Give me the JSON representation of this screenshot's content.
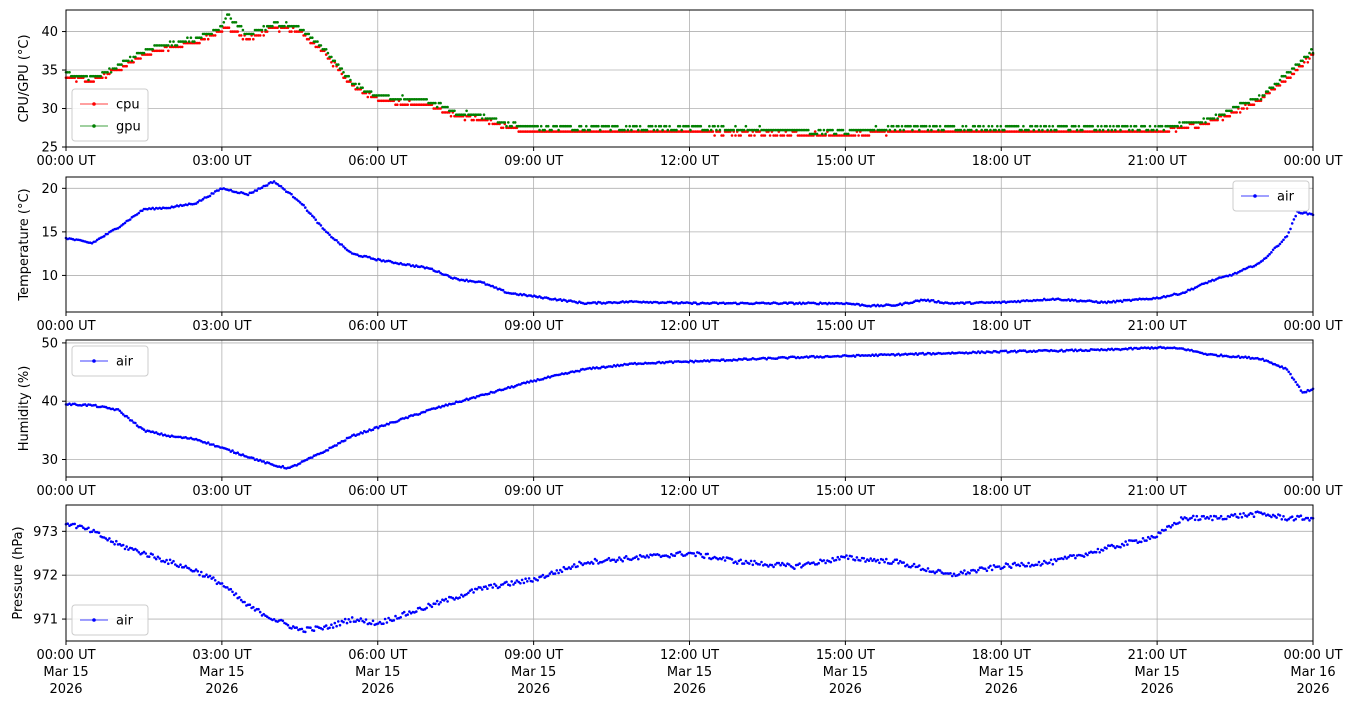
{
  "x_ticks": [
    "00:00 UT",
    "03:00 UT",
    "06:00 UT",
    "09:00 UT",
    "12:00 UT",
    "15:00 UT",
    "18:00 UT",
    "21:00 UT",
    "00:00 UT"
  ],
  "x_ticks_bottom": [
    [
      "00:00 UT",
      "Mar 15",
      "2026"
    ],
    [
      "03:00 UT",
      "Mar 15",
      "2026"
    ],
    [
      "06:00 UT",
      "Mar 15",
      "2026"
    ],
    [
      "09:00 UT",
      "Mar 15",
      "2026"
    ],
    [
      "12:00 UT",
      "Mar 15",
      "2026"
    ],
    [
      "15:00 UT",
      "Mar 15",
      "2026"
    ],
    [
      "18:00 UT",
      "Mar 15",
      "2026"
    ],
    [
      "21:00 UT",
      "Mar 15",
      "2026"
    ],
    [
      "00:00 UT",
      "Mar 16",
      "2026"
    ]
  ],
  "chart_data": [
    {
      "type": "scatter",
      "ylabel": "CPU/GPU (°C)",
      "ylim": [
        25,
        42.8
      ],
      "yticks": [
        25,
        30,
        35,
        40
      ],
      "xlim": [
        "2026-03-15 00:00 UT",
        "2026-03-16 00:00 UT"
      ],
      "grid": true,
      "legend": "lower-left",
      "series": [
        {
          "name": "cpu",
          "color": "#ff0000",
          "x": [
            0,
            0.5,
            1,
            1.5,
            2,
            2.5,
            3,
            3.1,
            3.5,
            4,
            4.5,
            5,
            5.5,
            6,
            7,
            7.5,
            8,
            8.5,
            9,
            10,
            12,
            15,
            16,
            18,
            19,
            20,
            21,
            21.5,
            22,
            22.5,
            23,
            23.5,
            24
          ],
          "y": [
            34,
            33.5,
            35,
            37,
            38,
            38.5,
            40,
            40.5,
            39,
            40.5,
            40,
            37,
            33,
            31,
            30.5,
            29,
            28.5,
            27.5,
            27,
            27,
            27,
            26.5,
            27,
            27,
            27,
            27,
            27,
            27.5,
            28,
            29.5,
            31,
            34,
            37
          ]
        },
        {
          "name": "gpu",
          "color": "#008000",
          "x": [
            0,
            0.5,
            1,
            1.5,
            2,
            2.5,
            3,
            3.1,
            3.5,
            4,
            4.5,
            5,
            5.5,
            6,
            7,
            7.5,
            8,
            8.5,
            9,
            10,
            12,
            15,
            16,
            18,
            19,
            20,
            21,
            21.5,
            22,
            22.5,
            23,
            23.5,
            24
          ],
          "y": [
            34.3,
            33.8,
            35.3,
            37.3,
            38.3,
            38.8,
            40.3,
            42,
            39.3,
            40.8,
            40.3,
            37.3,
            33.3,
            31.3,
            30.8,
            29.3,
            28.8,
            27.8,
            27.3,
            27.3,
            27.3,
            26.8,
            27.3,
            27.3,
            27.3,
            27.3,
            27.3,
            27.8,
            28.3,
            29.8,
            31.3,
            34.3,
            37.3
          ]
        }
      ]
    },
    {
      "type": "scatter",
      "ylabel": "Temperature (°C)",
      "ylim": [
        5.8,
        21.3
      ],
      "yticks": [
        10,
        15,
        20
      ],
      "xlim": [
        "2026-03-15 00:00 UT",
        "2026-03-16 00:00 UT"
      ],
      "grid": true,
      "legend": "upper-right",
      "series": [
        {
          "name": "air",
          "color": "#0000ff",
          "x": [
            0,
            0.5,
            1,
            1.5,
            2,
            2.5,
            3,
            3.5,
            4,
            4.5,
            5,
            5.5,
            6,
            7,
            7.5,
            8,
            8.5,
            9,
            10,
            11,
            12,
            14,
            15,
            15.5,
            16,
            16.5,
            17,
            18,
            19,
            20,
            21,
            21.5,
            22,
            22.5,
            23,
            23.5,
            23.7,
            24
          ],
          "y": [
            14.3,
            13.7,
            15.5,
            17.6,
            17.8,
            18.3,
            20,
            19.3,
            20.8,
            18.5,
            15,
            12.5,
            11.8,
            10.8,
            9.6,
            9.2,
            8,
            7.6,
            6.8,
            7,
            6.8,
            6.8,
            6.8,
            6.5,
            6.6,
            7.2,
            6.8,
            6.9,
            7.3,
            6.9,
            7.4,
            8,
            9.3,
            10.2,
            11.5,
            14.5,
            17.3,
            17
          ]
        }
      ]
    },
    {
      "type": "scatter",
      "ylabel": "Humidity (%)",
      "ylim": [
        27,
        50.5
      ],
      "yticks": [
        30,
        40,
        50
      ],
      "xlim": [
        "2026-03-15 00:00 UT",
        "2026-03-16 00:00 UT"
      ],
      "grid": true,
      "legend": "upper-left",
      "series": [
        {
          "name": "air",
          "color": "#0000ff",
          "x": [
            0,
            0.5,
            1,
            1.5,
            2,
            2.5,
            3,
            3.5,
            4,
            4.3,
            5,
            5.5,
            6,
            7,
            8,
            9,
            10,
            11,
            12,
            14,
            16,
            18,
            20,
            21,
            21.5,
            22,
            23,
            23.5,
            23.8,
            24
          ],
          "y": [
            39.5,
            39.3,
            38.5,
            35,
            34,
            33.5,
            32,
            30.5,
            29,
            28.5,
            31.5,
            34,
            35.5,
            38.5,
            41,
            43.5,
            45.5,
            46.5,
            46.8,
            47.5,
            48,
            48.5,
            48.8,
            49.2,
            49,
            48,
            47.3,
            45.5,
            41.5,
            42
          ]
        }
      ]
    },
    {
      "type": "scatter",
      "ylabel": "Pressure (hPa)",
      "ylim": [
        970.5,
        973.6
      ],
      "yticks": [
        971,
        972,
        973
      ],
      "xlim": [
        "2026-03-15 00:00 UT",
        "2026-03-16 00:00 UT"
      ],
      "grid": true,
      "legend": "lower-left",
      "series": [
        {
          "name": "air",
          "color": "#0000ff",
          "x": [
            0,
            0.5,
            1,
            1.5,
            2,
            2.5,
            3,
            3.5,
            4,
            4.5,
            5,
            5.5,
            6,
            7,
            8,
            9,
            10,
            11,
            12,
            13,
            14,
            15,
            16,
            17,
            18,
            19,
            20,
            21,
            21.5,
            22,
            23,
            23.5,
            24
          ],
          "y": [
            973.2,
            973,
            972.7,
            972.5,
            972.3,
            972.1,
            971.8,
            971.3,
            971,
            970.75,
            970.8,
            971,
            970.9,
            971.3,
            971.7,
            971.9,
            972.3,
            972.4,
            972.5,
            972.3,
            972.2,
            972.4,
            972.3,
            972,
            972.2,
            972.3,
            972.6,
            972.9,
            973.3,
            973.3,
            973.4,
            973.3,
            973.3
          ]
        }
      ]
    }
  ]
}
